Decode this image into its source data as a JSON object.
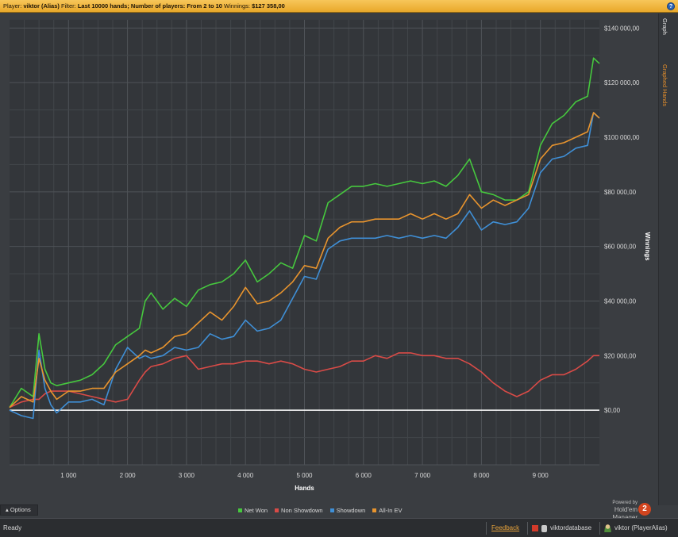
{
  "header": {
    "player_label": "Player:",
    "player": "viktor (Alias)",
    "filter_label": "Filter:",
    "filter": "Last 10000 hands; Number of players: From 2 to 10",
    "winnings_label": "Winnings:",
    "winnings": "$127 358,00",
    "help": "?"
  },
  "sidebar": {
    "tabs": [
      "Graph",
      "Graphed Hands"
    ]
  },
  "options_label": "Options",
  "powered": {
    "line1": "Powered by",
    "line2": "Hold'em Manager",
    "logo": "2"
  },
  "status": {
    "ready": "Ready",
    "feedback": "Feedback",
    "database": "viktordatabase",
    "user": "viktor (PlayerAlias)"
  },
  "chart_data": {
    "type": "line",
    "xlabel": "Hands",
    "ylabel": "Winnings",
    "xlim": [
      0,
      10000
    ],
    "ylim": [
      -20000,
      143000
    ],
    "x_ticks": [
      1000,
      2000,
      3000,
      4000,
      5000,
      6000,
      7000,
      8000,
      9000
    ],
    "x_tick_labels": [
      "1 000",
      "2 000",
      "3 000",
      "4 000",
      "5 000",
      "6 000",
      "7 000",
      "8 000",
      "9 000"
    ],
    "y_ticks": [
      0,
      20000,
      40000,
      60000,
      80000,
      100000,
      120000,
      140000
    ],
    "y_tick_labels": [
      "$0,00",
      "$20 000,00",
      "$40 000,00",
      "$60 000,00",
      "$80 000,00",
      "$100 000,00",
      "$120 000,00",
      "$140 000,00"
    ],
    "grid": true,
    "legend_position": "bottom",
    "x": [
      0,
      200,
      400,
      500,
      600,
      700,
      800,
      1000,
      1200,
      1400,
      1600,
      1800,
      2000,
      2200,
      2300,
      2400,
      2600,
      2800,
      3000,
      3200,
      3400,
      3600,
      3800,
      4000,
      4200,
      4400,
      4600,
      4800,
      5000,
      5200,
      5400,
      5600,
      5800,
      6000,
      6200,
      6400,
      6600,
      6800,
      7000,
      7200,
      7400,
      7600,
      7800,
      8000,
      8200,
      8400,
      8600,
      8800,
      9000,
      9200,
      9400,
      9600,
      9800,
      9900,
      10000
    ],
    "series": [
      {
        "name": "Net Won",
        "color": "#46c83e",
        "values": [
          1000,
          8000,
          5000,
          28000,
          15000,
          10000,
          9000,
          10000,
          11000,
          13000,
          17000,
          24000,
          27000,
          30000,
          40000,
          43000,
          37000,
          41000,
          38000,
          44000,
          46000,
          47000,
          50000,
          55000,
          47000,
          50000,
          54000,
          52000,
          64000,
          62000,
          76000,
          79000,
          82000,
          82000,
          83000,
          82000,
          83000,
          84000,
          83000,
          84000,
          82000,
          86000,
          92000,
          80000,
          79000,
          77000,
          77000,
          80000,
          97000,
          105000,
          108000,
          113000,
          115000,
          129000,
          127000
        ]
      },
      {
        "name": "Non Showdown",
        "color": "#d94b47",
        "values": [
          1000,
          3000,
          4000,
          4000,
          6000,
          7000,
          7000,
          7000,
          6000,
          5000,
          4000,
          3000,
          4000,
          11000,
          14000,
          16000,
          17000,
          19000,
          20000,
          15000,
          16000,
          17000,
          17000,
          18000,
          18000,
          17000,
          18000,
          17000,
          15000,
          14000,
          15000,
          16000,
          18000,
          18000,
          20000,
          19000,
          21000,
          21000,
          20000,
          20000,
          19000,
          19000,
          17000,
          14000,
          10000,
          7000,
          5000,
          7000,
          11000,
          13000,
          13000,
          15000,
          18000,
          20000,
          20000
        ]
      },
      {
        "name": "Showdown",
        "color": "#3f8fd6",
        "values": [
          0,
          -2000,
          -3000,
          22000,
          8000,
          2000,
          -1000,
          3000,
          3000,
          4000,
          2000,
          15000,
          23000,
          19000,
          20000,
          19000,
          20000,
          23000,
          22000,
          23000,
          28000,
          26000,
          27000,
          33000,
          29000,
          30000,
          33000,
          41000,
          49000,
          48000,
          59000,
          62000,
          63000,
          63000,
          63000,
          64000,
          63000,
          64000,
          63000,
          64000,
          63000,
          67000,
          73000,
          66000,
          69000,
          68000,
          69000,
          74000,
          87000,
          92000,
          93000,
          96000,
          97000,
          109000,
          107000
        ]
      },
      {
        "name": "All-In EV",
        "color": "#e8942e",
        "values": [
          1000,
          5000,
          3000,
          19000,
          11000,
          7000,
          4000,
          7000,
          7000,
          8000,
          8000,
          14000,
          17000,
          20000,
          22000,
          21000,
          23000,
          27000,
          28000,
          32000,
          36000,
          33000,
          38000,
          45000,
          39000,
          40000,
          43000,
          47000,
          53000,
          52000,
          63000,
          67000,
          69000,
          69000,
          70000,
          70000,
          70000,
          72000,
          70000,
          72000,
          70000,
          72000,
          79000,
          74000,
          77000,
          75000,
          77000,
          79000,
          92000,
          97000,
          98000,
          100000,
          102000,
          109000,
          107000
        ]
      }
    ]
  }
}
